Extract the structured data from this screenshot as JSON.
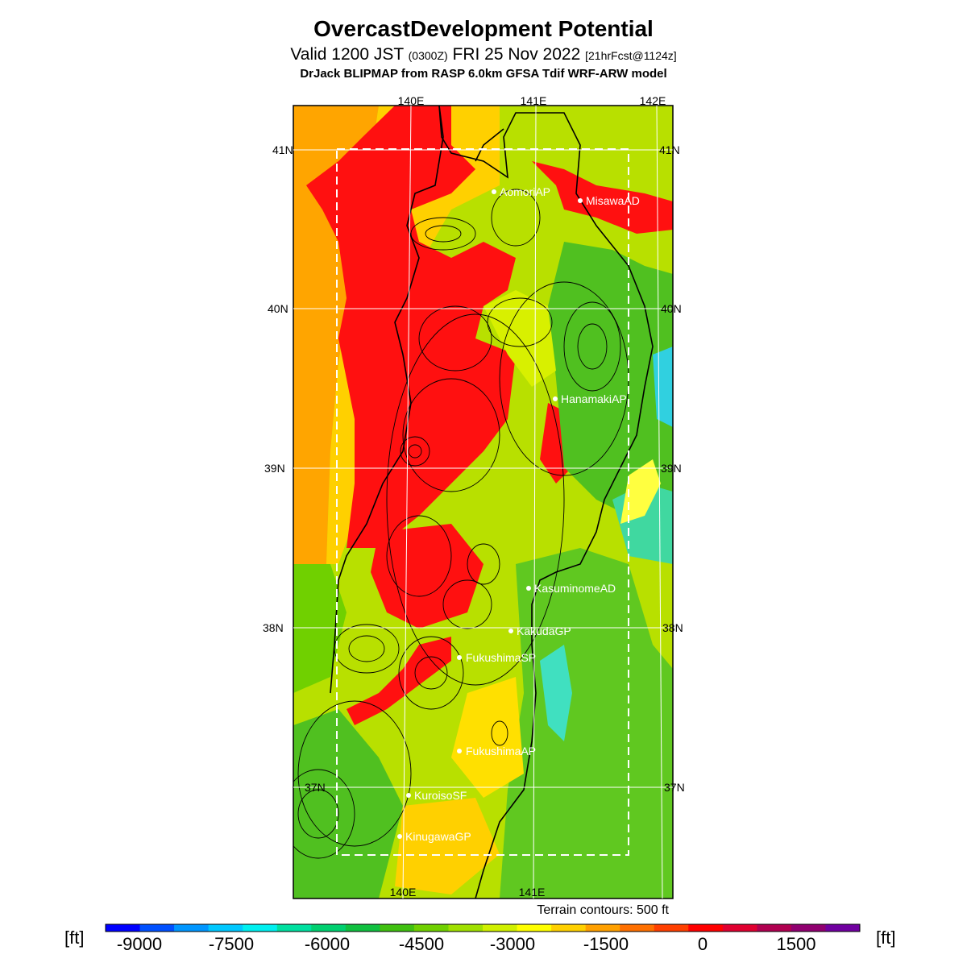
{
  "header": {
    "title": "OvercastDevelopment Potential",
    "valid_prefix": "Valid 1200 JST",
    "valid_utc": "(0300Z)",
    "valid_date": "FRI 25 Nov 2022",
    "forecast": "[21hrFcst@1124z]",
    "model": "DrJack BLIPMAP from RASP 6.0km GFSA Tdif WRF-ARW model"
  },
  "map": {
    "lon_labels_top": [
      "140E",
      "141E",
      "142E"
    ],
    "lon_labels_bottom": [
      "140E",
      "141E"
    ],
    "lat_labels_left": [
      "41N",
      "40N",
      "39N",
      "38N",
      "37N"
    ],
    "lat_labels_right": [
      "41N",
      "40N",
      "39N",
      "38N",
      "37N"
    ],
    "stations": [
      {
        "name": "AomoriAP"
      },
      {
        "name": "MisawaAD"
      },
      {
        "name": "HanamakiAP"
      },
      {
        "name": "KasuminomeAD"
      },
      {
        "name": "KakudaGP"
      },
      {
        "name": "FukushimaSP"
      },
      {
        "name": "FukushimaAP"
      },
      {
        "name": "KuroisoSF"
      },
      {
        "name": "KinugawaGP"
      }
    ],
    "terrain_note": "Terrain contours: 500 ft"
  },
  "colorbar": {
    "unit": "[ft]",
    "tick_labels": [
      "-9000",
      "-7500",
      "-6000",
      "-4500",
      "-3000",
      "-1500",
      "0",
      "1500"
    ],
    "colors": [
      "#0000ff",
      "#0050ff",
      "#0096ff",
      "#00c8ff",
      "#00f0f0",
      "#00e0a0",
      "#00d070",
      "#10c040",
      "#40c010",
      "#70d000",
      "#a0e000",
      "#d0f000",
      "#ffff00",
      "#ffd000",
      "#ffa000",
      "#ff7000",
      "#ff4000",
      "#ff0000",
      "#e00030",
      "#b00050",
      "#900070",
      "#7000a0"
    ]
  }
}
